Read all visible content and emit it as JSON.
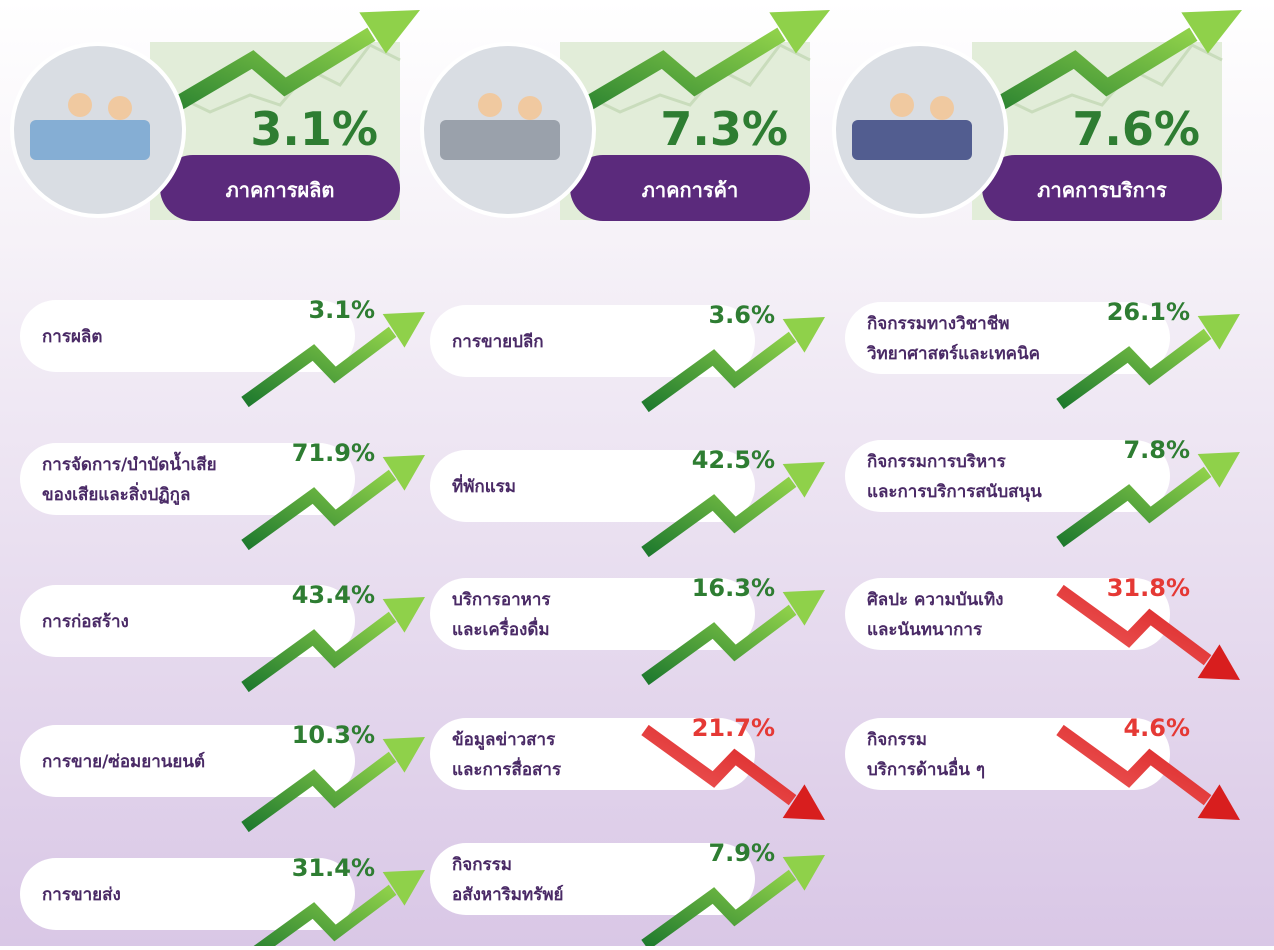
{
  "sectors": [
    {
      "value": "3.1%",
      "label": "ภาคการผลิต"
    },
    {
      "value": "7.3%",
      "label": "ภาคการค้า"
    },
    {
      "value": "7.6%",
      "label": "ภาคการบริการ"
    }
  ],
  "columns": [
    [
      {
        "lines": [
          "การผลิต"
        ],
        "value": "3.1%",
        "trend": "up"
      },
      {
        "lines": [
          "การจัดการ/บำบัดน้ำเสีย",
          "ของเสียและสิ่งปฏิกูล"
        ],
        "value": "71.9%",
        "trend": "up"
      },
      {
        "lines": [
          "การก่อสร้าง"
        ],
        "value": "43.4%",
        "trend": "up"
      },
      {
        "lines": [
          "การขาย/ซ่อมยานยนต์"
        ],
        "value": "10.3%",
        "trend": "up"
      },
      {
        "lines": [
          "การขายส่ง"
        ],
        "value": "31.4%",
        "trend": "up"
      }
    ],
    [
      {
        "lines": [
          "การขายปลีก"
        ],
        "value": "3.6%",
        "trend": "up"
      },
      {
        "lines": [
          "ที่พักแรม"
        ],
        "value": "42.5%",
        "trend": "up"
      },
      {
        "lines": [
          "บริการอาหาร",
          "และเครื่องดื่ม"
        ],
        "value": "16.3%",
        "trend": "up"
      },
      {
        "lines": [
          "ข้อมูลข่าวสาร",
          "และการสื่อสาร"
        ],
        "value": "21.7%",
        "trend": "down"
      },
      {
        "lines": [
          "กิจกรรม",
          "อสังหาริมทรัพย์"
        ],
        "value": "7.9%",
        "trend": "up"
      }
    ],
    [
      {
        "lines": [
          "กิจกรรมทางวิชาชีพ",
          "วิทยาศาสตร์และเทคนิค"
        ],
        "value": "26.1%",
        "trend": "up"
      },
      {
        "lines": [
          "กิจกรรมการบริหาร",
          "และการบริการสนับสนุน"
        ],
        "value": "7.8%",
        "trend": "up"
      },
      {
        "lines": [
          "ศิลปะ ความบันเทิง",
          "และนันทนาการ"
        ],
        "value": "31.8%",
        "trend": "down"
      },
      {
        "lines": [
          "กิจกรรม",
          "บริการด้านอื่น ๆ"
        ],
        "value": "4.6%",
        "trend": "down"
      }
    ]
  ]
}
